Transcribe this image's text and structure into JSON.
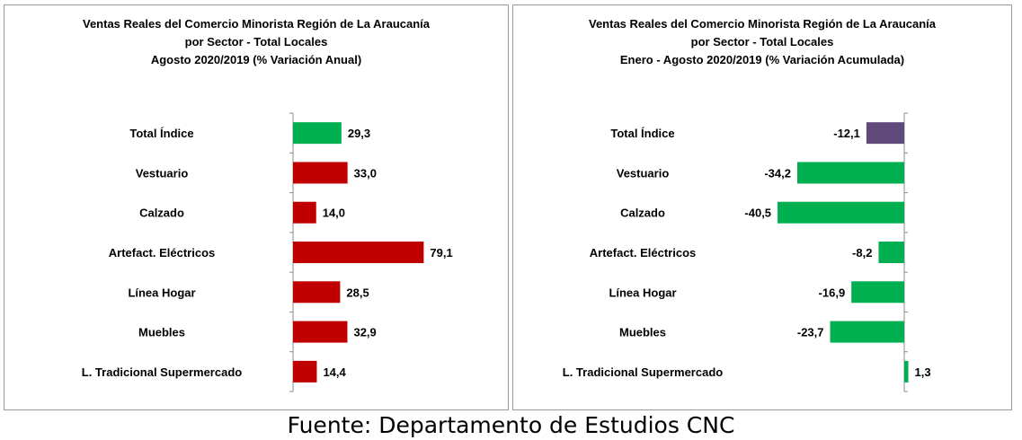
{
  "source": "Fuente: Departamento de Estudios CNC",
  "chart_data": [
    {
      "type": "bar",
      "orientation": "horizontal",
      "title_lines": [
        "Ventas Reales del Comercio Minorista  Región de La Araucanía",
        "por Sector  - Total Locales",
        "Agosto 2020/2019 (% Variación Anual)"
      ],
      "categories": [
        "Total Índice",
        "Vestuario",
        "Calzado",
        "Artefact. Eléctricos",
        "Línea Hogar",
        "Muebles",
        "L. Tradicional Supermercado"
      ],
      "values": [
        29.3,
        33.0,
        14.0,
        79.1,
        28.5,
        32.9,
        14.4
      ],
      "value_labels": [
        "29,3",
        "33,0",
        "14,0",
        "79,1",
        "28,5",
        "32,9",
        "14,4"
      ],
      "colors": [
        "#00b050",
        "#c00000",
        "#c00000",
        "#c00000",
        "#c00000",
        "#c00000",
        "#c00000"
      ],
      "xlim": [
        0,
        100
      ],
      "grid": false
    },
    {
      "type": "bar",
      "orientation": "horizontal",
      "title_lines": [
        "Ventas Reales del Comercio Minorista Región de La Araucanía",
        "por Sector - Total Locales",
        "Enero - Agosto 2020/2019 (% Variación Acumulada)"
      ],
      "categories": [
        "Total Índice",
        "Vestuario",
        "Calzado",
        "Artefact. Eléctricos",
        "Línea Hogar",
        "Muebles",
        "L. Tradicional Supermercado"
      ],
      "values": [
        -12.1,
        -34.2,
        -40.5,
        -8.2,
        -16.9,
        -23.7,
        1.3
      ],
      "value_labels": [
        "-12,1",
        "-34,2",
        "-40,5",
        "-8,2",
        "-16,9",
        "-23,7",
        "1,3"
      ],
      "colors": [
        "#604a7b",
        "#00b050",
        "#00b050",
        "#00b050",
        "#00b050",
        "#00b050",
        "#00b050"
      ],
      "xlim": [
        -50,
        0
      ],
      "grid": false
    }
  ]
}
